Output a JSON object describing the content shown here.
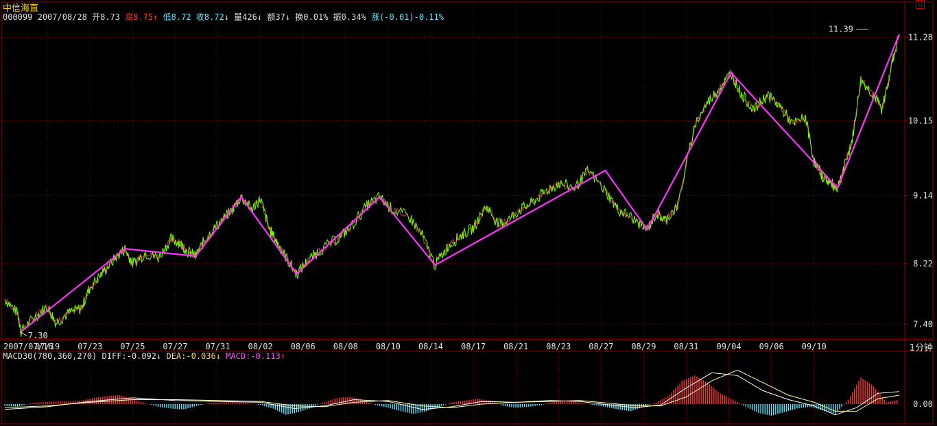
{
  "header": {
    "name": "中信海直",
    "code": "000099",
    "date": "2007/08/28",
    "open_label": "开",
    "open": "8.73",
    "high_label": "高",
    "high": "8.75",
    "high_arrow": "↑",
    "low_label": "低",
    "low": "8.72",
    "close_label": "收",
    "close": "8.72",
    "close_arrow": "↓",
    "volume_label": "量",
    "volume": "426",
    "volume_arrow": "↓",
    "amount_label": "额",
    "amount": "37",
    "amount_arrow": "↓",
    "turnover_label": "换",
    "turnover": "0.01%",
    "amplitude_label": "振",
    "amplitude": "0.34%",
    "change_label": "涨",
    "change": "(-0.01)-0.11%"
  },
  "period_label": "1分钟",
  "macd_header": {
    "name": "MACD30(780,360,270)",
    "diff_label": "DIFF:",
    "diff": "-0.092",
    "diff_arrow": "↓",
    "dea_label": "DEA:",
    "dea": "-0.036",
    "dea_arrow": "↓",
    "macd_label": "MACD:",
    "macd": "-0.113",
    "macd_arrow": "↑"
  },
  "colors": {
    "background": "#000000",
    "grid": "#8b0000",
    "zigzag": "#ff33ff",
    "price_line": "#7cfc00",
    "bar_up": "#ff3030",
    "bar_down": "#5fe8ff",
    "dea_line": "#ffffaa",
    "diff_line": "#ffffff"
  },
  "chart_data": [
    {
      "type": "line",
      "name": "price",
      "y_ticks": [
        "11.28",
        "10.15",
        "9.14",
        "8.22",
        "7.40"
      ],
      "y_tick_values": [
        11.28,
        10.15,
        9.14,
        8.22,
        7.4
      ],
      "ylim": [
        7.2,
        11.45
      ],
      "x_ticks": [
        "2007/07/16",
        "07/19",
        "07/23",
        "07/25",
        "07/27",
        "07/31",
        "08/02",
        "08/06",
        "08/08",
        "08/10",
        "08/14",
        "08/17",
        "08/21",
        "08/23",
        "08/27",
        "08/29",
        "08/31",
        "09/04",
        "09/06",
        "09/10"
      ],
      "x_tick_pos": [
        0,
        1,
        2,
        3,
        4,
        5,
        6,
        7,
        8,
        9,
        10,
        11,
        12,
        13,
        14,
        15,
        16,
        17,
        18,
        19
      ],
      "xlim": [
        -0.05,
        21.05
      ],
      "annotations": [
        {
          "text": "7.30",
          "x": 0.35,
          "y": 7.3
        },
        {
          "text": "11.39",
          "x": 20.05,
          "y": 11.39
        }
      ],
      "zigzag": {
        "x": [
          0.38,
          2.82,
          4.48,
          5.55,
          6.85,
          8.8,
          10.1,
          14.1,
          15.08,
          17.05,
          19.55,
          21.0
        ],
        "y": [
          7.3,
          8.42,
          8.32,
          9.12,
          8.08,
          9.12,
          8.2,
          9.48,
          8.68,
          10.8,
          9.24,
          11.32
        ]
      },
      "series": [
        {
          "x": [
            0,
            0.3,
            0.38,
            0.7,
            1.0,
            1.2,
            1.5,
            1.8,
            2.0,
            2.3,
            2.6,
            2.82,
            3.0,
            3.3,
            3.6,
            3.9,
            4.1,
            4.3,
            4.48,
            4.7,
            5.0,
            5.3,
            5.55,
            5.8,
            6.0,
            6.2,
            6.4,
            6.6,
            6.85,
            7.1,
            7.4,
            7.8,
            8.1,
            8.5,
            8.8,
            9.1,
            9.5,
            9.8,
            10.1,
            10.4,
            10.7,
            11.0,
            11.3,
            11.6,
            11.8,
            12.1,
            12.4,
            12.7,
            13.0,
            13.4,
            13.7,
            14.1,
            14.4,
            14.7,
            15.08,
            15.3,
            15.5,
            15.8,
            16.2,
            16.5,
            16.8,
            17.05,
            17.3,
            17.6,
            17.9,
            18.2,
            18.5,
            18.8,
            19.0,
            19.2,
            19.4,
            19.55,
            19.7,
            19.9,
            20.1,
            20.4,
            20.6,
            20.8,
            21.0
          ],
          "y": [
            7.74,
            7.55,
            7.3,
            7.5,
            7.64,
            7.42,
            7.55,
            7.62,
            7.9,
            8.1,
            8.3,
            8.42,
            8.22,
            8.36,
            8.3,
            8.55,
            8.5,
            8.38,
            8.32,
            8.55,
            8.75,
            8.92,
            9.12,
            8.95,
            9.1,
            8.7,
            8.5,
            8.3,
            8.08,
            8.25,
            8.4,
            8.55,
            8.7,
            9.0,
            9.12,
            8.95,
            8.85,
            8.6,
            8.2,
            8.45,
            8.6,
            8.7,
            9.0,
            8.75,
            8.8,
            8.95,
            9.05,
            9.2,
            9.3,
            9.25,
            9.48,
            9.2,
            8.95,
            8.85,
            8.68,
            8.9,
            8.8,
            9.0,
            10.1,
            10.4,
            10.6,
            10.8,
            10.5,
            10.3,
            10.5,
            10.35,
            10.1,
            10.2,
            9.6,
            9.4,
            9.3,
            9.24,
            9.5,
            9.9,
            10.7,
            10.5,
            10.3,
            10.85,
            11.32
          ]
        }
      ]
    },
    {
      "type": "bar",
      "name": "MACD30",
      "y_ticks": [
        "0.00"
      ],
      "ylim": [
        -0.23,
        0.46
      ],
      "x": [
        0,
        0.3,
        0.6,
        0.9,
        1.2,
        1.5,
        1.8,
        2.1,
        2.4,
        2.7,
        3.0,
        3.3,
        3.6,
        3.9,
        4.2,
        4.5,
        4.8,
        5.1,
        5.4,
        5.7,
        6.0,
        6.3,
        6.6,
        6.9,
        7.2,
        7.5,
        7.8,
        8.1,
        8.4,
        8.7,
        9.0,
        9.3,
        9.6,
        9.9,
        10.2,
        10.5,
        10.8,
        11.1,
        11.4,
        11.7,
        12.0,
        12.3,
        12.6,
        12.9,
        13.2,
        13.5,
        13.8,
        14.1,
        14.4,
        14.7,
        15.0,
        15.3,
        15.6,
        15.9,
        16.2,
        16.5,
        16.8,
        17.1,
        17.4,
        17.7,
        18.0,
        18.3,
        18.6,
        18.9,
        19.2,
        19.5,
        19.8,
        20.1,
        20.4,
        20.7,
        21.0
      ],
      "values": [
        -0.02,
        -0.03,
        0.01,
        0.02,
        0.03,
        0.03,
        0.04,
        0.07,
        0.09,
        0.1,
        0.06,
        0.01,
        -0.03,
        -0.05,
        -0.06,
        -0.02,
        0.01,
        0.02,
        0.03,
        0.01,
        -0.01,
        -0.05,
        -0.12,
        -0.09,
        -0.04,
        0.02,
        0.07,
        0.08,
        0.05,
        -0.01,
        -0.04,
        -0.08,
        -0.11,
        -0.08,
        -0.03,
        0.02,
        0.04,
        0.06,
        0.04,
        -0.02,
        -0.04,
        -0.03,
        -0.01,
        0.03,
        0.04,
        0.02,
        -0.01,
        -0.03,
        -0.06,
        -0.08,
        -0.03,
        0.02,
        0.1,
        0.26,
        0.32,
        0.24,
        0.12,
        0.05,
        -0.03,
        -0.1,
        -0.13,
        -0.09,
        -0.05,
        -0.03,
        -0.07,
        -0.11,
        0.05,
        0.3,
        0.2,
        0.02,
        0.05
      ],
      "series": [
        {
          "x": [
            0,
            1.0,
            2.0,
            3.0,
            4.0,
            5.0,
            6.0,
            6.8,
            7.5,
            8.2,
            9.0,
            9.8,
            10.5,
            11.2,
            12.0,
            12.8,
            13.5,
            14.2,
            14.8,
            15.4,
            16.0,
            16.6,
            17.2,
            17.8,
            18.4,
            19.0,
            19.5,
            20.0,
            20.5,
            21.0
          ],
          "y": [
            -0.06,
            -0.03,
            0.03,
            0.07,
            0.04,
            0.03,
            0.02,
            -0.05,
            -0.02,
            0.05,
            0.03,
            -0.06,
            -0.03,
            0.03,
            0.02,
            0.04,
            0.03,
            -0.01,
            -0.04,
            -0.01,
            0.18,
            0.35,
            0.32,
            0.15,
            0.05,
            -0.02,
            -0.12,
            -0.04,
            0.12,
            0.14
          ]
        },
        {
          "x": [
            0,
            1.0,
            2.0,
            3.0,
            4.0,
            5.0,
            6.0,
            6.8,
            7.5,
            8.2,
            9.0,
            9.8,
            10.5,
            11.2,
            12.0,
            12.8,
            13.5,
            14.2,
            14.8,
            15.4,
            16.0,
            16.6,
            17.2,
            17.8,
            18.4,
            19.0,
            19.5,
            20.0,
            20.5,
            21.0
          ],
          "y": [
            -0.04,
            -0.02,
            0.02,
            0.05,
            0.05,
            0.04,
            0.03,
            -0.02,
            -0.03,
            0.02,
            0.04,
            -0.02,
            -0.04,
            0.0,
            0.02,
            0.03,
            0.04,
            0.01,
            -0.02,
            -0.02,
            0.08,
            0.26,
            0.38,
            0.24,
            0.1,
            0.02,
            -0.08,
            -0.08,
            0.06,
            0.1
          ]
        }
      ]
    }
  ]
}
